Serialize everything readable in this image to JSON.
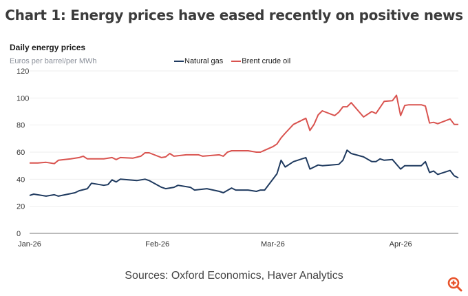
{
  "title": "Chart 1: Energy prices have eased recently on positive news",
  "source": "Sources: Oxford Economics, Haver Analytics",
  "zoom_icon": "zoom-in-icon",
  "chart_data": {
    "type": "line",
    "title": "Daily energy prices",
    "ylabel": "Euros per barrel/per MWh",
    "ylim": [
      0,
      120
    ],
    "yticks": [
      "0",
      "20",
      "40",
      "60",
      "80",
      "100",
      "120"
    ],
    "xlim": [
      "2026-01-01",
      "2026-04-15"
    ],
    "xticks": [
      {
        "date": "2026-01-01",
        "label": "Jan-26"
      },
      {
        "date": "2026-02-01",
        "label": "Feb-26"
      },
      {
        "date": "2026-03-01",
        "label": "Mar-26"
      },
      {
        "date": "2026-04-01",
        "label": "Apr-26"
      }
    ],
    "grid": "horizontal",
    "legend_placement": "top-center",
    "series": [
      {
        "name": "Natural gas",
        "color": "#1f3a5f",
        "points": [
          [
            "2026-01-01",
            28
          ],
          [
            "2026-01-02",
            29
          ],
          [
            "2026-01-05",
            27.5
          ],
          [
            "2026-01-07",
            28.5
          ],
          [
            "2026-01-08",
            27.5
          ],
          [
            "2026-01-12",
            30
          ],
          [
            "2026-01-13",
            31.5
          ],
          [
            "2026-01-15",
            33
          ],
          [
            "2026-01-16",
            37
          ],
          [
            "2026-01-19",
            35.5
          ],
          [
            "2026-01-20",
            36
          ],
          [
            "2026-01-21",
            39.5
          ],
          [
            "2026-01-22",
            38
          ],
          [
            "2026-01-23",
            40
          ],
          [
            "2026-01-27",
            39
          ],
          [
            "2026-01-29",
            40
          ],
          [
            "2026-01-30",
            39
          ],
          [
            "2026-02-02",
            34
          ],
          [
            "2026-02-03",
            33
          ],
          [
            "2026-02-05",
            34
          ],
          [
            "2026-02-06",
            35.5
          ],
          [
            "2026-02-09",
            34
          ],
          [
            "2026-02-10",
            32
          ],
          [
            "2026-02-13",
            33
          ],
          [
            "2026-02-16",
            31
          ],
          [
            "2026-02-17",
            30
          ],
          [
            "2026-02-19",
            33.5
          ],
          [
            "2026-02-20",
            32
          ],
          [
            "2026-02-23",
            32
          ],
          [
            "2026-02-25",
            31
          ],
          [
            "2026-02-26",
            32
          ],
          [
            "2026-02-27",
            32
          ],
          [
            "2026-03-02",
            44
          ],
          [
            "2026-03-03",
            54
          ],
          [
            "2026-03-04",
            49
          ],
          [
            "2026-03-06",
            53
          ],
          [
            "2026-03-09",
            56
          ],
          [
            "2026-03-10",
            47.5
          ],
          [
            "2026-03-12",
            50.5
          ],
          [
            "2026-03-13",
            50
          ],
          [
            "2026-03-17",
            51
          ],
          [
            "2026-03-18",
            54
          ],
          [
            "2026-03-19",
            61.5
          ],
          [
            "2026-03-20",
            59
          ],
          [
            "2026-03-23",
            56.5
          ],
          [
            "2026-03-25",
            53
          ],
          [
            "2026-03-26",
            53
          ],
          [
            "2026-03-27",
            55
          ],
          [
            "2026-03-28",
            54
          ],
          [
            "2026-03-30",
            54.5
          ],
          [
            "2026-04-01",
            47.5
          ],
          [
            "2026-04-02",
            50
          ],
          [
            "2026-04-06",
            50
          ],
          [
            "2026-04-07",
            53
          ],
          [
            "2026-04-08",
            45
          ],
          [
            "2026-04-09",
            46
          ],
          [
            "2026-04-10",
            43.5
          ],
          [
            "2026-04-13",
            46.5
          ],
          [
            "2026-04-14",
            42.5
          ],
          [
            "2026-04-15",
            41
          ]
        ]
      },
      {
        "name": "Brent crude oil",
        "color": "#d9534f",
        "points": [
          [
            "2026-01-01",
            52
          ],
          [
            "2026-01-03",
            52
          ],
          [
            "2026-01-05",
            52.5
          ],
          [
            "2026-01-07",
            51.5
          ],
          [
            "2026-01-08",
            54
          ],
          [
            "2026-01-11",
            55
          ],
          [
            "2026-01-13",
            56
          ],
          [
            "2026-01-14",
            57
          ],
          [
            "2026-01-15",
            55
          ],
          [
            "2026-01-19",
            55
          ],
          [
            "2026-01-21",
            56
          ],
          [
            "2026-01-22",
            54.5
          ],
          [
            "2026-01-23",
            56
          ],
          [
            "2026-01-26",
            55.5
          ],
          [
            "2026-01-28",
            57
          ],
          [
            "2026-01-29",
            59.5
          ],
          [
            "2026-01-30",
            59.5
          ],
          [
            "2026-02-02",
            56
          ],
          [
            "2026-02-03",
            56.5
          ],
          [
            "2026-02-04",
            59
          ],
          [
            "2026-02-05",
            57
          ],
          [
            "2026-02-08",
            58
          ],
          [
            "2026-02-11",
            58
          ],
          [
            "2026-02-12",
            57
          ],
          [
            "2026-02-16",
            58
          ],
          [
            "2026-02-17",
            57
          ],
          [
            "2026-02-18",
            60
          ],
          [
            "2026-02-19",
            61
          ],
          [
            "2026-02-23",
            61
          ],
          [
            "2026-02-25",
            60
          ],
          [
            "2026-02-26",
            60
          ],
          [
            "2026-03-01",
            64
          ],
          [
            "2026-03-02",
            66
          ],
          [
            "2026-03-03",
            70.5
          ],
          [
            "2026-03-04",
            74
          ],
          [
            "2026-03-06",
            80.5
          ],
          [
            "2026-03-09",
            85
          ],
          [
            "2026-03-10",
            76
          ],
          [
            "2026-03-11",
            80.5
          ],
          [
            "2026-03-12",
            87.5
          ],
          [
            "2026-03-13",
            90.5
          ],
          [
            "2026-03-16",
            87
          ],
          [
            "2026-03-17",
            89.5
          ],
          [
            "2026-03-18",
            93.5
          ],
          [
            "2026-03-19",
            93.5
          ],
          [
            "2026-03-20",
            96.5
          ],
          [
            "2026-03-23",
            86
          ],
          [
            "2026-03-25",
            90
          ],
          [
            "2026-03-26",
            88.5
          ],
          [
            "2026-03-28",
            97.5
          ],
          [
            "2026-03-30",
            98
          ],
          [
            "2026-03-31",
            102
          ],
          [
            "2026-04-01",
            87
          ],
          [
            "2026-04-02",
            94.5
          ],
          [
            "2026-04-03",
            95
          ],
          [
            "2026-04-06",
            95
          ],
          [
            "2026-04-07",
            94
          ],
          [
            "2026-04-08",
            81.5
          ],
          [
            "2026-04-09",
            82
          ],
          [
            "2026-04-10",
            81
          ],
          [
            "2026-04-13",
            84.5
          ],
          [
            "2026-04-14",
            80.5
          ],
          [
            "2026-04-15",
            80.5
          ]
        ]
      }
    ]
  }
}
